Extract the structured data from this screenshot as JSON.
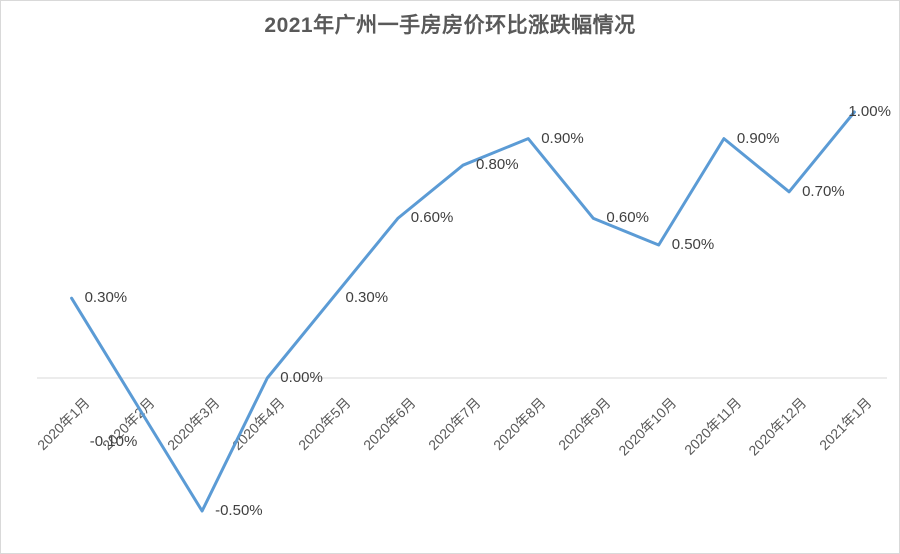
{
  "chart_data": {
    "type": "line",
    "title": "2021年广州一手房房价环比涨跌幅情况",
    "categories": [
      "2020年1月",
      "2020年2月",
      "2020年3月",
      "2020年4月",
      "2020年5月",
      "2020年6月",
      "2020年7月",
      "2020年8月",
      "2020年9月",
      "2020年10月",
      "2020年11月",
      "2020年12月",
      "2021年1月"
    ],
    "values": [
      0.3,
      -0.1,
      -0.5,
      0.0,
      0.3,
      0.6,
      0.8,
      0.9,
      0.6,
      0.5,
      0.9,
      0.7,
      1.0
    ],
    "data_labels": [
      "0.30%",
      "-0.10%",
      "-0.50%",
      "0.00%",
      "0.30%",
      "0.60%",
      "0.80%",
      "0.90%",
      "0.60%",
      "0.50%",
      "0.90%",
      "0.70%",
      "1.00%"
    ],
    "unit": "%",
    "xlabel": "",
    "ylabel": "",
    "ylim": [
      -0.6,
      1.2
    ],
    "grid": false,
    "legend": false,
    "y_axis_labels_visible": false,
    "colors": {
      "line": "#5B9BD5",
      "zero_axis_line": "#D9D9D9",
      "data_label_text": "#404040",
      "axis_label_text": "#595959",
      "title_text": "#595959",
      "background": "#ffffff"
    }
  }
}
